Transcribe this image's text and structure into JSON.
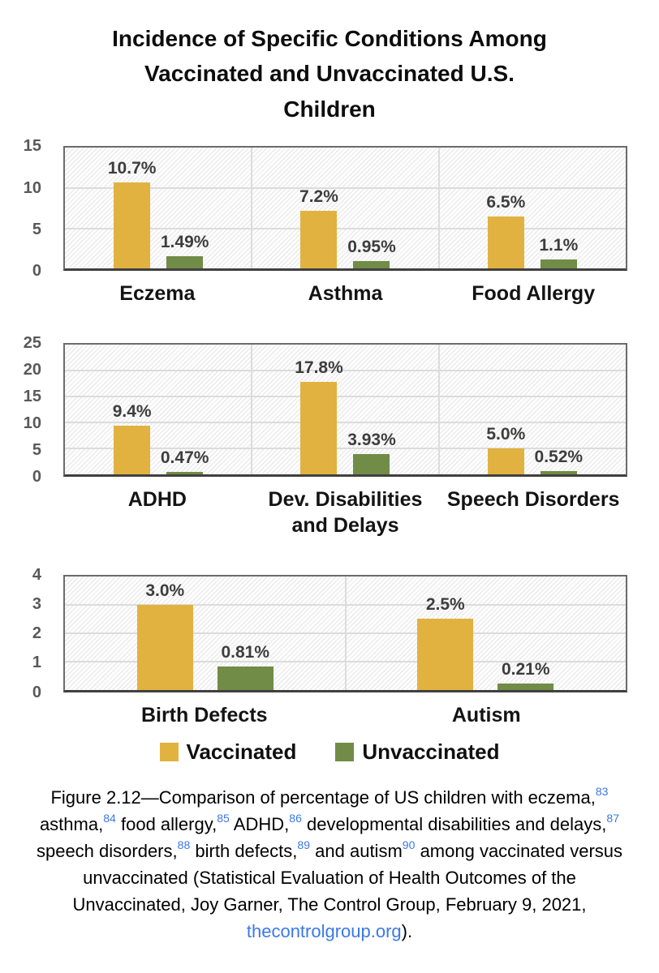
{
  "title_lines": [
    "Incidence of Specific Conditions Among",
    "Vaccinated and Unvaccinated U.S.",
    "Children"
  ],
  "colors": {
    "vaccinated": "#E1B23F",
    "unvaccinated": "#708C46",
    "grid": "#DCDCDC",
    "plot_border": "#6B6B6B",
    "axis": "#404040",
    "tick_label": "#595959",
    "data_label": "#3D3D3D",
    "category_label": "#141414",
    "link_blue": "#3B78E7"
  },
  "legend": {
    "items": [
      {
        "label": "Vaccinated",
        "color": "#E1B23F"
      },
      {
        "label": "Unvaccinated",
        "color": "#708C46"
      }
    ]
  },
  "chart_data": {
    "type": "bar",
    "units": "percent",
    "series_names": [
      "Vaccinated",
      "Unvaccinated"
    ],
    "legend_position": "bottom",
    "grid": true,
    "panels": [
      {
        "ymax": 15,
        "yticks": [
          0,
          5,
          10,
          15
        ],
        "categories": [
          "Eczema",
          "Asthma",
          "Food Allergy"
        ],
        "series": [
          {
            "name": "Vaccinated",
            "values": [
              10.7,
              7.2,
              6.5
            ],
            "labels": [
              "10.7%",
              "7.2%",
              "6.5%"
            ]
          },
          {
            "name": "Unvaccinated",
            "values": [
              1.49,
              0.95,
              1.1
            ],
            "labels": [
              "1.49%",
              "0.95%",
              "1.1%"
            ]
          }
        ]
      },
      {
        "ymax": 25,
        "yticks": [
          0,
          5,
          10,
          15,
          20,
          25
        ],
        "categories": [
          "ADHD",
          "Dev. Disabilities and Delays",
          "Speech Disorders"
        ],
        "series": [
          {
            "name": "Vaccinated",
            "values": [
              9.4,
              17.8,
              5.0
            ],
            "labels": [
              "9.4%",
              "17.8%",
              "5.0%"
            ]
          },
          {
            "name": "Unvaccinated",
            "values": [
              0.47,
              3.93,
              0.52
            ],
            "labels": [
              "0.47%",
              "3.93%",
              "0.52%"
            ]
          }
        ]
      },
      {
        "ymax": 4,
        "yticks": [
          0,
          1,
          2,
          3,
          4
        ],
        "categories": [
          "Birth Defects",
          "Autism"
        ],
        "series": [
          {
            "name": "Vaccinated",
            "values": [
              3.0,
              2.5
            ],
            "labels": [
              "3.0%",
              "2.5%"
            ]
          },
          {
            "name": "Unvaccinated",
            "values": [
              0.81,
              0.21
            ],
            "labels": [
              "0.81%",
              "0.21%"
            ]
          }
        ]
      }
    ]
  },
  "caption": {
    "segments": [
      {
        "kind": "text",
        "text": "Figure 2.12—Comparison of percentage of US children with eczema,"
      },
      {
        "kind": "sup",
        "text": "83"
      },
      {
        "kind": "text",
        "text": " asthma,"
      },
      {
        "kind": "sup",
        "text": "84"
      },
      {
        "kind": "text",
        "text": " food allergy,"
      },
      {
        "kind": "sup",
        "text": "85"
      },
      {
        "kind": "text",
        "text": " ADHD,"
      },
      {
        "kind": "sup",
        "text": "86"
      },
      {
        "kind": "text",
        "text": " developmental disabilities and delays,"
      },
      {
        "kind": "sup",
        "text": "87"
      },
      {
        "kind": "text",
        "text": " speech disorders,"
      },
      {
        "kind": "sup",
        "text": "88"
      },
      {
        "kind": "text",
        "text": " birth defects,"
      },
      {
        "kind": "sup",
        "text": "89"
      },
      {
        "kind": "text",
        "text": " and autism"
      },
      {
        "kind": "sup",
        "text": "90"
      },
      {
        "kind": "text",
        "text": " among vaccinated versus unvaccinated (Statistical Evaluation of Health Outcomes of the Unvaccinated, Joy Garner, The Control Group, February 9, 2021, "
      },
      {
        "kind": "link",
        "text": "thecontrolgroup.org"
      },
      {
        "kind": "text",
        "text": ")."
      }
    ]
  }
}
